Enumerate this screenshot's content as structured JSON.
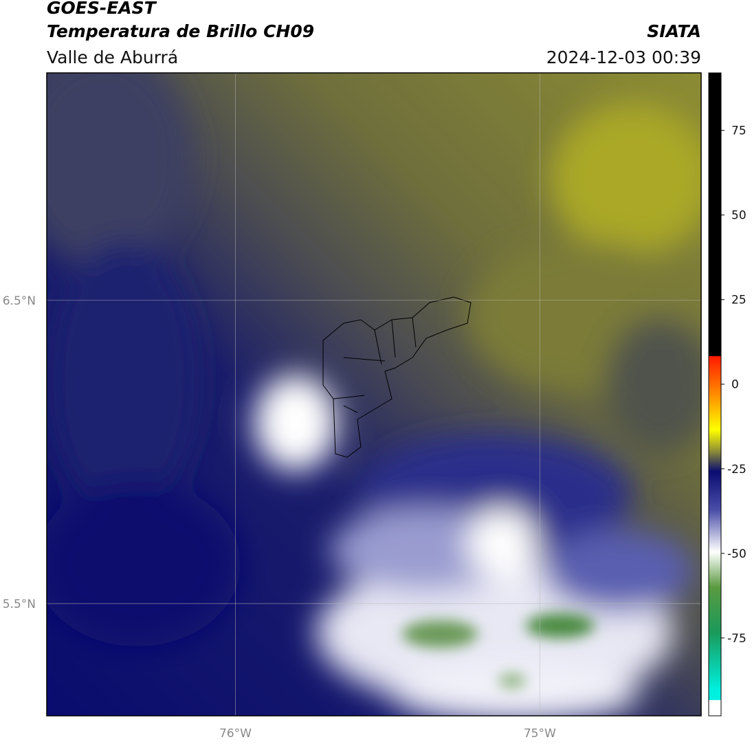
{
  "header": {
    "title": "GOES-EAST",
    "subtitle": "Temperatura de Brillo CH09",
    "region": "Valle de Aburrá",
    "source": "SIATA",
    "timestamp": "2024-12-03 00:39"
  },
  "map": {
    "lon_range": [
      -76.62,
      -74.47
    ],
    "lat_range": [
      5.13,
      7.25
    ],
    "lon_ticks": [
      {
        "value": -76,
        "label": "76°W"
      },
      {
        "value": -75,
        "label": "75°W"
      }
    ],
    "lat_ticks": [
      {
        "value": 6.5,
        "label": "6.5°N"
      },
      {
        "value": 5.5,
        "label": "5.5°N"
      }
    ]
  },
  "colorbar": {
    "range": [
      -98,
      92
    ],
    "ticks": [
      75,
      50,
      25,
      0,
      -25,
      -50,
      -75
    ]
  }
}
